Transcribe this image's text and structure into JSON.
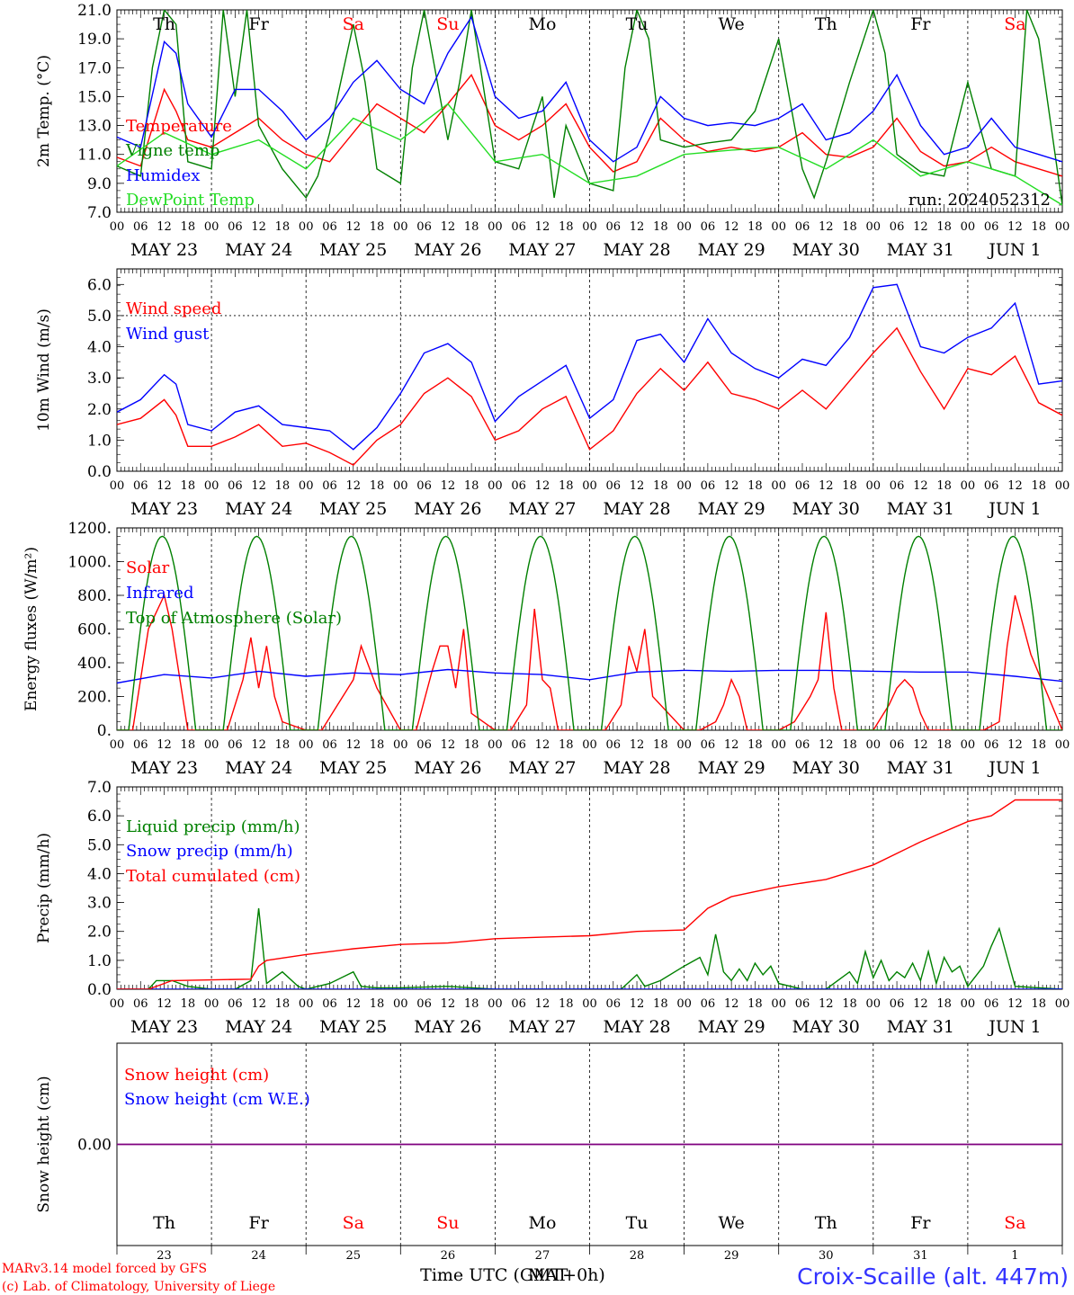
{
  "colors": {
    "red": "#ff0000",
    "green": "#008000",
    "blue": "#0000ff",
    "lightgreen": "#22dd22",
    "purple": "#7f007f",
    "black": "#000000"
  },
  "time_axis": {
    "hour_ticks": [
      "00",
      "06",
      "12",
      "18"
    ],
    "final_tick": "00",
    "dates": [
      "MAY 23",
      "MAY 24",
      "MAY 25",
      "MAY 26",
      "MAY 27",
      "MAY 28",
      "MAY 29",
      "MAY 30",
      "MAY 31",
      "JUN  1"
    ],
    "weekdays": [
      "Th",
      "Fr",
      "Sa",
      "Su",
      "Mo",
      "Tu",
      "We",
      "Th",
      "Fr",
      "Sa"
    ],
    "weekday_colors": [
      "black",
      "black",
      "red",
      "red",
      "black",
      "black",
      "black",
      "black",
      "black",
      "red"
    ],
    "day_numbers": [
      "23",
      "24",
      "25",
      "26",
      "27",
      "28",
      "29",
      "30",
      "31",
      "1"
    ]
  },
  "run_label": "run: 2024052312",
  "footer": {
    "xlabel": "Time UTC (GMT+0h)",
    "xlabel_overlap": "MAT",
    "credit_1": "MARv3.14 model forced by GFS",
    "credit_2": "(c) Lab. of Climatology, University of Liege",
    "station": "Croix-Scaille (alt. 447m)"
  },
  "chart_data": [
    {
      "type": "line",
      "ylabel": "2m Temp. (°C)",
      "ylim": [
        7,
        21
      ],
      "yticks": [
        "7.0",
        "9.0",
        "11.0",
        "13.0",
        "15.0",
        "17.0",
        "19.0",
        "21.0"
      ],
      "x_unit": "hours since 2024-05-23 00 UTC",
      "xlim": [
        0,
        240
      ],
      "legend": "upper-left",
      "series": [
        {
          "name": "Temperature",
          "color": "red",
          "x": [
            0,
            6,
            12,
            15,
            18,
            24,
            30,
            36,
            42,
            48,
            54,
            60,
            66,
            72,
            78,
            84,
            90,
            96,
            102,
            108,
            114,
            120,
            126,
            132,
            138,
            144,
            150,
            156,
            162,
            168,
            174,
            180,
            186,
            192,
            198,
            204,
            210,
            216,
            222,
            228,
            234,
            240
          ],
          "y": [
            10.8,
            10.2,
            15.5,
            14.0,
            12.0,
            11.5,
            12.5,
            13.5,
            12.0,
            11.0,
            10.5,
            12.5,
            14.5,
            13.5,
            12.5,
            14.5,
            16.5,
            13.0,
            12.0,
            13.0,
            14.5,
            11.5,
            9.8,
            10.5,
            13.5,
            12.0,
            11.2,
            11.5,
            11.2,
            11.5,
            12.5,
            11.0,
            10.8,
            11.5,
            13.5,
            11.2,
            10.2,
            10.5,
            11.5,
            10.5,
            10.0,
            9.5
          ]
        },
        {
          "name": "Vigne temp",
          "color": "green",
          "x": [
            0,
            6,
            9,
            12,
            15,
            18,
            24,
            27,
            30,
            33,
            36,
            42,
            48,
            51,
            54,
            60,
            63,
            66,
            72,
            75,
            78,
            84,
            87,
            90,
            96,
            102,
            108,
            111,
            114,
            120,
            126,
            129,
            132,
            135,
            138,
            144,
            150,
            156,
            162,
            168,
            174,
            177,
            180,
            186,
            192,
            195,
            198,
            204,
            210,
            216,
            222,
            228,
            231,
            234,
            240
          ],
          "y": [
            10.2,
            9.5,
            17.0,
            21.0,
            20.0,
            10.5,
            10.0,
            21.0,
            15.0,
            21.0,
            13.0,
            10.0,
            8.0,
            9.5,
            12.5,
            20.0,
            16.0,
            10.0,
            9.0,
            17.0,
            21.0,
            12.0,
            16.0,
            21.0,
            10.5,
            10.0,
            15.0,
            8.0,
            13.0,
            9.0,
            8.5,
            17.0,
            21.0,
            19.0,
            12.0,
            11.5,
            11.8,
            12.0,
            14.0,
            19.0,
            10.0,
            8.0,
            10.5,
            16.0,
            21.0,
            18.0,
            11.0,
            9.8,
            9.5,
            16.0,
            10.0,
            9.5,
            21.0,
            19.0,
            7.5
          ]
        },
        {
          "name": "Humidex",
          "color": "blue",
          "x": [
            0,
            6,
            12,
            15,
            18,
            24,
            30,
            36,
            42,
            48,
            54,
            60,
            66,
            72,
            78,
            84,
            90,
            96,
            102,
            108,
            114,
            120,
            126,
            132,
            138,
            144,
            150,
            156,
            162,
            168,
            174,
            180,
            186,
            192,
            198,
            204,
            210,
            216,
            222,
            228,
            234,
            240
          ],
          "y": [
            12.2,
            11.5,
            18.8,
            18.0,
            14.5,
            12.2,
            15.5,
            15.5,
            14.0,
            12.0,
            13.5,
            16.0,
            17.5,
            15.5,
            14.5,
            18.0,
            20.5,
            15.0,
            13.5,
            14.0,
            16.0,
            12.0,
            10.5,
            11.5,
            15.0,
            13.5,
            13.0,
            13.2,
            13.0,
            13.5,
            14.5,
            12.0,
            12.5,
            14.0,
            16.5,
            13.0,
            11.0,
            11.5,
            13.5,
            11.5,
            11.0,
            10.5
          ]
        },
        {
          "name": "DewPoint Temp",
          "color": "lightgreen",
          "x": [
            0,
            12,
            24,
            36,
            48,
            60,
            72,
            84,
            96,
            108,
            120,
            132,
            144,
            156,
            168,
            180,
            192,
            204,
            216,
            228,
            240
          ],
          "y": [
            10.2,
            12.5,
            11.0,
            12.0,
            10.0,
            13.5,
            12.0,
            14.5,
            10.5,
            11.0,
            9.0,
            9.5,
            11.0,
            11.3,
            11.5,
            10.0,
            12.0,
            9.5,
            10.5,
            9.5,
            7.5
          ]
        }
      ]
    },
    {
      "type": "line",
      "ylabel": "10m Wind (m/s)",
      "ylim": [
        0,
        6.5
      ],
      "yticks": [
        "0.0",
        "1.0",
        "2.0",
        "3.0",
        "4.0",
        "5.0",
        "6.0"
      ],
      "x_unit": "hours since 2024-05-23 00 UTC",
      "xlim": [
        0,
        240
      ],
      "legend": "upper-left",
      "series": [
        {
          "name": "Wind speed",
          "color": "red",
          "x": [
            0,
            6,
            12,
            15,
            18,
            24,
            30,
            36,
            42,
            48,
            54,
            60,
            66,
            72,
            78,
            84,
            90,
            96,
            102,
            108,
            114,
            120,
            126,
            132,
            138,
            144,
            150,
            156,
            162,
            168,
            174,
            180,
            186,
            192,
            198,
            204,
            210,
            216,
            222,
            228,
            234,
            240
          ],
          "y": [
            1.5,
            1.7,
            2.3,
            1.8,
            0.8,
            0.8,
            1.1,
            1.5,
            0.8,
            0.9,
            0.6,
            0.2,
            1.0,
            1.5,
            2.5,
            3.0,
            2.4,
            1.0,
            1.3,
            2.0,
            2.4,
            0.7,
            1.3,
            2.5,
            3.3,
            2.6,
            3.5,
            2.5,
            2.3,
            2.0,
            2.6,
            2.0,
            2.9,
            3.8,
            4.6,
            3.2,
            2.0,
            3.3,
            3.1,
            3.7,
            2.2,
            1.8
          ]
        },
        {
          "name": "Wind gust",
          "color": "blue",
          "x": [
            0,
            6,
            12,
            15,
            18,
            24,
            30,
            36,
            42,
            48,
            54,
            60,
            66,
            72,
            78,
            84,
            90,
            96,
            102,
            108,
            114,
            120,
            126,
            132,
            138,
            144,
            150,
            156,
            162,
            168,
            174,
            180,
            186,
            192,
            198,
            204,
            210,
            216,
            222,
            228,
            234,
            240
          ],
          "y": [
            1.9,
            2.3,
            3.1,
            2.8,
            1.5,
            1.3,
            1.9,
            2.1,
            1.5,
            1.4,
            1.3,
            0.7,
            1.4,
            2.5,
            3.8,
            4.1,
            3.5,
            1.6,
            2.4,
            2.9,
            3.4,
            1.7,
            2.3,
            4.2,
            4.4,
            3.5,
            4.9,
            3.8,
            3.3,
            3.0,
            3.6,
            3.4,
            4.3,
            5.9,
            6.0,
            4.0,
            3.8,
            4.3,
            4.6,
            5.4,
            2.8,
            2.9
          ]
        }
      ]
    },
    {
      "type": "line",
      "ylabel": "Energy fluxes (W/m²)",
      "ylim": [
        0,
        1200
      ],
      "yticks": [
        "0.",
        "200.",
        "400.",
        "600.",
        "800.",
        "1000.",
        "1200."
      ],
      "x_unit": "hours since 2024-05-23 00 UTC",
      "xlim": [
        0,
        240
      ],
      "legend": "upper-left",
      "series": [
        {
          "name": "Solar",
          "color": "red",
          "x": [
            0,
            4,
            8,
            12,
            14,
            18,
            24,
            28,
            32,
            34,
            36,
            38,
            40,
            42,
            48,
            52,
            56,
            60,
            62,
            66,
            72,
            76,
            80,
            82,
            84,
            86,
            88,
            90,
            96,
            100,
            104,
            106,
            108,
            110,
            112,
            120,
            124,
            128,
            130,
            132,
            134,
            136,
            144,
            148,
            152,
            154,
            156,
            158,
            160,
            168,
            172,
            176,
            178,
            180,
            182,
            184,
            192,
            196,
            198,
            200,
            202,
            204,
            206,
            216,
            220,
            224,
            226,
            228,
            232,
            240
          ],
          "y": [
            0,
            0,
            600,
            800,
            600,
            0,
            0,
            0,
            300,
            550,
            250,
            500,
            200,
            50,
            0,
            0,
            150,
            300,
            500,
            250,
            0,
            0,
            350,
            500,
            500,
            250,
            600,
            100,
            0,
            0,
            150,
            720,
            300,
            250,
            0,
            0,
            0,
            150,
            500,
            350,
            600,
            200,
            0,
            0,
            50,
            150,
            300,
            200,
            0,
            0,
            50,
            200,
            300,
            700,
            250,
            0,
            0,
            150,
            250,
            300,
            250,
            100,
            0,
            0,
            0,
            50,
            500,
            800,
            450,
            0
          ]
        },
        {
          "name": "Infrared",
          "color": "blue",
          "x": [
            0,
            12,
            24,
            36,
            48,
            60,
            72,
            84,
            96,
            108,
            120,
            132,
            144,
            156,
            168,
            180,
            192,
            204,
            216,
            228,
            240
          ],
          "y": [
            280,
            330,
            310,
            350,
            320,
            340,
            330,
            360,
            340,
            330,
            300,
            345,
            355,
            350,
            355,
            355,
            350,
            345,
            345,
            320,
            290
          ]
        },
        {
          "name": "Top of Atmosphere (Solar)",
          "color": "green",
          "peak": 1150,
          "daylight_hours_utc": [
            3,
            20
          ],
          "note": "daily diurnal curve"
        }
      ]
    },
    {
      "type": "line",
      "ylabel": "Precip (mm/h)",
      "ylim": [
        0,
        7
      ],
      "yticks": [
        "0.0",
        "1.0",
        "2.0",
        "3.0",
        "4.0",
        "5.0",
        "6.0",
        "7.0"
      ],
      "x_unit": "hours since 2024-05-23 00 UTC",
      "xlim": [
        0,
        240
      ],
      "legend": "upper-left",
      "series": [
        {
          "name": "Liquid precip (mm/h)",
          "color": "green",
          "x": [
            0,
            8,
            10,
            14,
            18,
            24,
            30,
            34,
            36,
            38,
            42,
            46,
            48,
            54,
            60,
            62,
            66,
            72,
            84,
            96,
            120,
            128,
            132,
            134,
            138,
            144,
            148,
            150,
            152,
            154,
            156,
            158,
            160,
            162,
            164,
            166,
            168,
            174,
            180,
            186,
            188,
            190,
            192,
            194,
            196,
            198,
            200,
            202,
            204,
            206,
            208,
            210,
            212,
            214,
            216,
            220,
            222,
            224,
            228,
            240
          ],
          "y": [
            0,
            0,
            0.3,
            0.3,
            0.1,
            0,
            0,
            0.3,
            2.8,
            0.2,
            0.6,
            0.1,
            0,
            0.2,
            0.6,
            0.1,
            0.05,
            0.05,
            0.1,
            0,
            0,
            0,
            0.5,
            0.1,
            0.3,
            0.8,
            1.1,
            0.5,
            1.9,
            0.6,
            0.3,
            0.7,
            0.3,
            0.9,
            0.5,
            0.8,
            0.2,
            0,
            0,
            0.6,
            0.2,
            1.3,
            0.4,
            1.0,
            0.3,
            0.6,
            0.4,
            0.9,
            0.3,
            1.3,
            0.2,
            1.1,
            0.6,
            0.8,
            0.1,
            0.8,
            1.5,
            2.1,
            0.1,
            0
          ]
        },
        {
          "name": "Snow precip (mm/h)",
          "color": "blue",
          "x": [
            0,
            240
          ],
          "y": [
            0,
            0
          ]
        },
        {
          "name": "Total cumulated (cm)",
          "color": "red",
          "x": [
            0,
            8,
            14,
            34,
            36,
            38,
            48,
            60,
            72,
            84,
            96,
            108,
            120,
            132,
            144,
            150,
            156,
            168,
            180,
            192,
            204,
            216,
            222,
            228,
            240
          ],
          "y": [
            0,
            0,
            0.3,
            0.35,
            0.8,
            1.0,
            1.2,
            1.4,
            1.55,
            1.6,
            1.75,
            1.8,
            1.85,
            2.0,
            2.05,
            2.8,
            3.2,
            3.55,
            3.8,
            4.3,
            5.1,
            5.8,
            6.0,
            6.55,
            6.55
          ]
        }
      ]
    },
    {
      "type": "line",
      "ylabel": "Snow height (cm)",
      "yticks": [
        "0.00"
      ],
      "x_unit": "hours since 2024-05-23 00 UTC",
      "xlim": [
        0,
        240
      ],
      "legend": "upper-left",
      "series": [
        {
          "name": "Snow height (cm)",
          "color": "red",
          "x": [
            0,
            240
          ],
          "y": [
            0,
            0
          ]
        },
        {
          "name": "Snow height (cm W.E.)",
          "color": "blue",
          "x": [
            0,
            240
          ],
          "y": [
            0,
            0
          ]
        }
      ]
    }
  ]
}
